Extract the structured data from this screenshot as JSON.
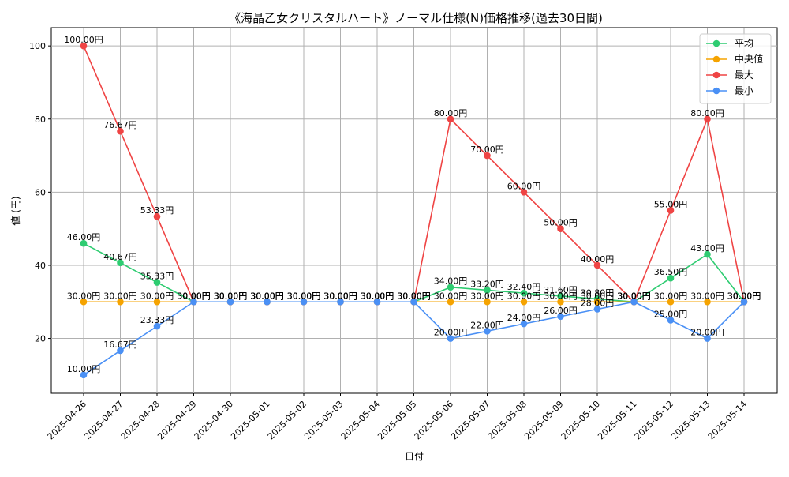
{
  "chart_data": {
    "type": "line",
    "title": "《海晶乙女クリスタルハート》ノーマル仕様(N)価格推移(過去30日間)",
    "xlabel": "日付",
    "ylabel": "値 (円)",
    "ylim": [
      5,
      105
    ],
    "yticks": [
      20,
      40,
      60,
      80,
      100
    ],
    "grid": true,
    "legend_position": "top-right",
    "label_suffix": "円",
    "categories": [
      "2025-04-26",
      "2025-04-27",
      "2025-04-28",
      "2025-04-29",
      "2025-04-30",
      "2025-05-01",
      "2025-05-02",
      "2025-05-03",
      "2025-05-04",
      "2025-05-05",
      "2025-05-06",
      "2025-05-07",
      "2025-05-08",
      "2025-05-09",
      "2025-05-10",
      "2025-05-11",
      "2025-05-12",
      "2025-05-13",
      "2025-05-14"
    ],
    "series": [
      {
        "name": "平均",
        "color": "#2ecc71",
        "values": [
          46.0,
          40.67,
          35.33,
          30.0,
          30.0,
          30.0,
          30.0,
          30.0,
          30.0,
          30.0,
          34.0,
          33.2,
          32.4,
          31.6,
          30.8,
          30.0,
          36.5,
          43.0,
          30.0
        ]
      },
      {
        "name": "中央値",
        "color": "#f5a300",
        "values": [
          30.0,
          30.0,
          30.0,
          30.0,
          30.0,
          30.0,
          30.0,
          30.0,
          30.0,
          30.0,
          30.0,
          30.0,
          30.0,
          30.0,
          30.0,
          30.0,
          30.0,
          30.0,
          30.0
        ]
      },
      {
        "name": "最大",
        "color": "#ef4444",
        "values": [
          100.0,
          76.67,
          53.33,
          30.0,
          30.0,
          30.0,
          30.0,
          30.0,
          30.0,
          30.0,
          80.0,
          70.0,
          60.0,
          50.0,
          40.0,
          30.0,
          55.0,
          80.0,
          30.0
        ]
      },
      {
        "name": "最小",
        "color": "#4a90f5",
        "values": [
          10.0,
          16.67,
          23.33,
          30.0,
          30.0,
          30.0,
          30.0,
          30.0,
          30.0,
          30.0,
          20.0,
          22.0,
          24.0,
          26.0,
          28.0,
          30.0,
          25.0,
          20.0,
          30.0
        ]
      }
    ]
  }
}
